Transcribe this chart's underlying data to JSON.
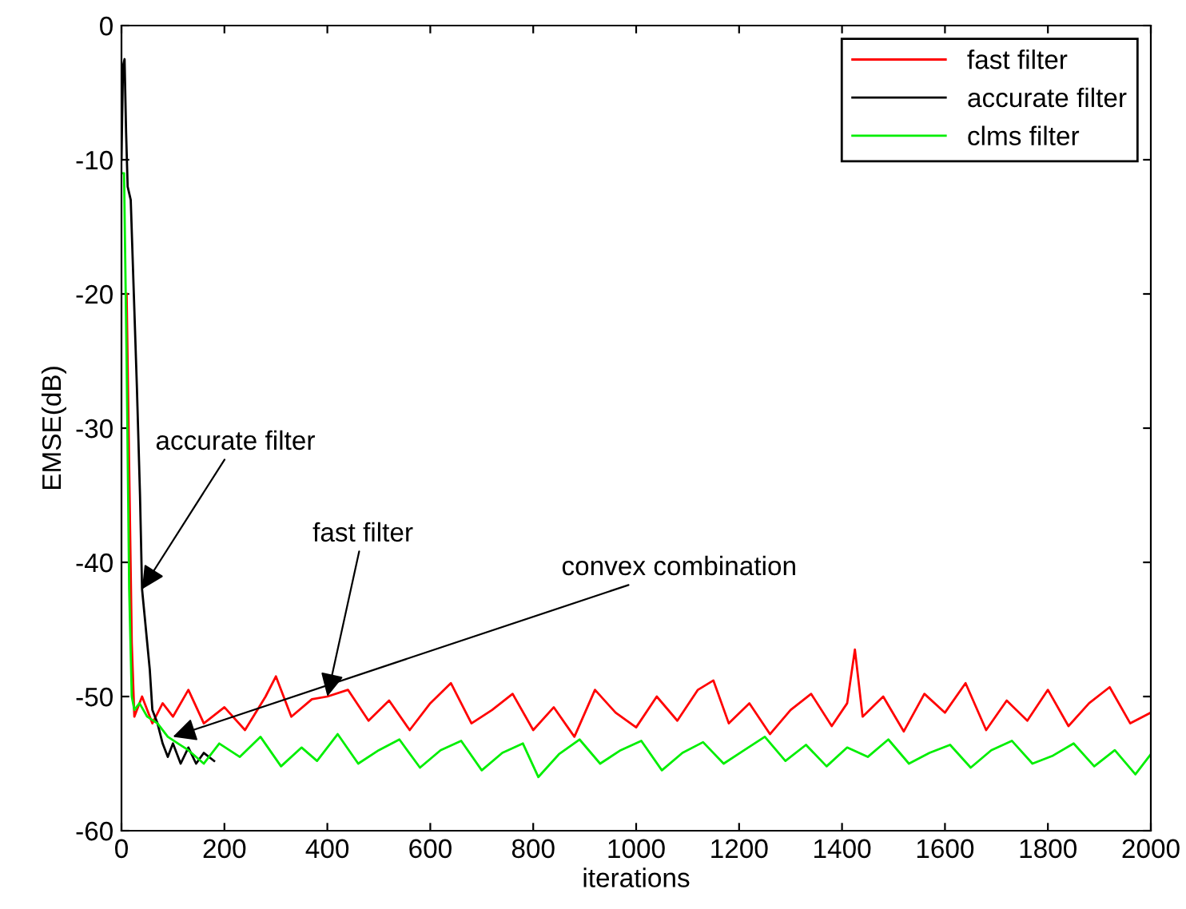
{
  "chart_data": {
    "type": "line",
    "xlabel": "iterations",
    "ylabel": "EMSE(dB)",
    "xlim": [
      0,
      2000
    ],
    "ylim": [
      -60,
      0
    ],
    "xticks": [
      0,
      200,
      400,
      600,
      800,
      1000,
      1200,
      1400,
      1600,
      1800,
      2000
    ],
    "yticks": [
      -60,
      -50,
      -40,
      -30,
      -20,
      -10,
      0
    ],
    "grid": false,
    "legend": "top right",
    "line_style": "solid",
    "series": [
      {
        "name": "fast filter",
        "color": "#ff0000",
        "x": [
          10,
          15,
          20,
          25,
          40,
          60,
          80,
          100,
          130,
          160,
          200,
          240,
          280,
          300,
          330,
          370,
          400,
          440,
          480,
          520,
          560,
          600,
          640,
          680,
          720,
          760,
          800,
          840,
          880,
          920,
          960,
          1000,
          1040,
          1080,
          1120,
          1150,
          1180,
          1220,
          1260,
          1300,
          1340,
          1380,
          1410,
          1425,
          1440,
          1480,
          1520,
          1560,
          1600,
          1640,
          1680,
          1720,
          1760,
          1800,
          1840,
          1880,
          1920,
          1960,
          2000
        ],
        "values": [
          -20,
          -33,
          -46,
          -51.5,
          -50,
          -52,
          -50.5,
          -51.5,
          -49.5,
          -52,
          -50.8,
          -52.5,
          -50,
          -48.5,
          -51.5,
          -50.2,
          -50,
          -49.5,
          -51.8,
          -50.3,
          -52.5,
          -50.5,
          -49,
          -52,
          -51,
          -49.8,
          -52.5,
          -50.8,
          -53,
          -49.5,
          -51.2,
          -52.3,
          -50,
          -51.8,
          -49.5,
          -48.8,
          -52,
          -50.5,
          -52.8,
          -51,
          -49.8,
          -52.2,
          -50.5,
          -46.5,
          -51.5,
          -50,
          -52.6,
          -49.8,
          -51.2,
          -49,
          -52.5,
          -50.3,
          -51.8,
          -49.5,
          -52.2,
          -50.5,
          -49.3,
          -52,
          -51.2
        ]
      },
      {
        "name": "accurate filter",
        "color": "#000000",
        "x": [
          0,
          3,
          6,
          9,
          12,
          18,
          24,
          30,
          36,
          40,
          45,
          50,
          55,
          60,
          70,
          80,
          90,
          100,
          115,
          130,
          145,
          160,
          180
        ],
        "values": [
          -10,
          -3,
          -2.5,
          -8,
          -12,
          -13,
          -20,
          -27,
          -35,
          -42,
          -44,
          -46,
          -48,
          -51,
          -52,
          -53.5,
          -54.5,
          -53.5,
          -55,
          -53.8,
          -55,
          -54.2,
          -54.8
        ]
      },
      {
        "name": "clms filter",
        "color": "#00ee00",
        "x": [
          0,
          5,
          10,
          15,
          20,
          25,
          35,
          50,
          70,
          90,
          110,
          130,
          160,
          190,
          230,
          270,
          310,
          350,
          380,
          420,
          460,
          500,
          540,
          580,
          620,
          660,
          700,
          740,
          780,
          810,
          850,
          890,
          930,
          970,
          1010,
          1050,
          1090,
          1130,
          1170,
          1210,
          1250,
          1290,
          1330,
          1370,
          1410,
          1450,
          1490,
          1530,
          1570,
          1610,
          1650,
          1690,
          1730,
          1770,
          1810,
          1850,
          1890,
          1930,
          1970,
          2000
        ],
        "values": [
          -11,
          -11,
          -25,
          -42,
          -50,
          -51,
          -50.5,
          -51.5,
          -52,
          -53,
          -53.5,
          -54,
          -55,
          -53.5,
          -54.5,
          -53,
          -55.2,
          -53.8,
          -54.8,
          -52.8,
          -55,
          -54,
          -53.2,
          -55.3,
          -54,
          -53.3,
          -55.5,
          -54.2,
          -53.5,
          -56,
          -54.3,
          -53.2,
          -55,
          -54,
          -53.3,
          -55.5,
          -54.2,
          -53.4,
          -55,
          -54,
          -53,
          -54.8,
          -53.6,
          -55.2,
          -53.8,
          -54.5,
          -53.2,
          -55,
          -54.2,
          -53.6,
          -55.3,
          -54,
          -53.3,
          -55,
          -54.4,
          -53.5,
          -55.2,
          -54,
          -55.8,
          -54.3
        ]
      }
    ],
    "annotations": [
      {
        "text": "accurate filter",
        "x": 40,
        "y": -42
      },
      {
        "text": "fast filter",
        "x": 400,
        "y": -50
      },
      {
        "text": "convex combination",
        "x": 100,
        "y": -53
      }
    ]
  }
}
